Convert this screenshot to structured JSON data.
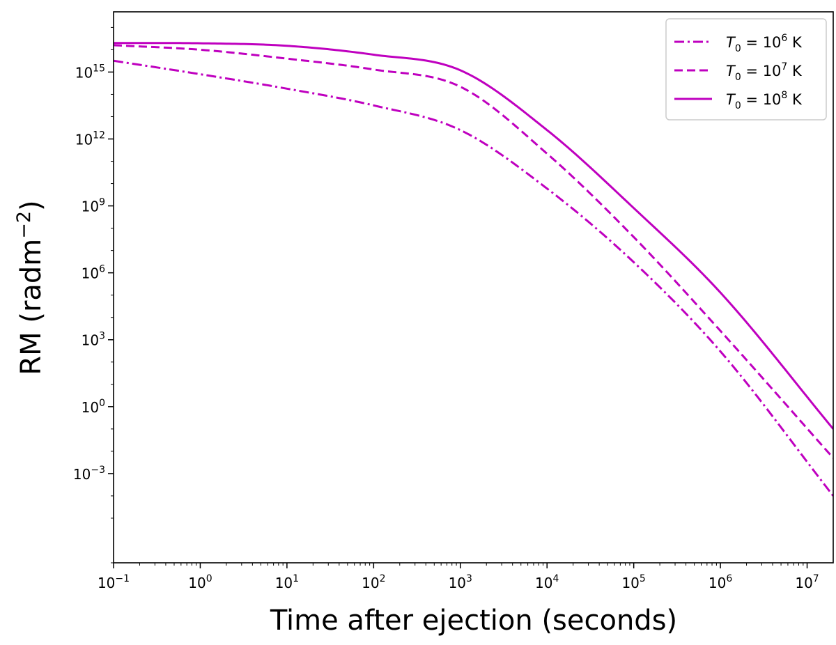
{
  "chart_data": {
    "type": "line",
    "title": "",
    "xlabel": "Time after ejection (seconds)",
    "ylabel": "RM (radm$^{-2}$)",
    "xscale": "log",
    "yscale": "log",
    "xlim": [
      0.1,
      20000000
    ],
    "ylim": [
      1e-07,
      5e+17
    ],
    "x_tick_labels": [
      "10^-1",
      "10^0",
      "10^1",
      "10^2",
      "10^3",
      "10^4",
      "10^5",
      "10^6",
      "10^7"
    ],
    "y_tick_labels": [
      "10^-3",
      "10^0",
      "10^3",
      "10^6",
      "10^9",
      "10^12",
      "10^15"
    ],
    "grid": false,
    "legend_position": "top-right",
    "color": "#bf00bf",
    "series": [
      {
        "name": "T0 = 10^6 K",
        "legend": {
          "var": "T",
          "sub": "0",
          "eq": " = 10",
          "exp": "6",
          "unit": " K"
        },
        "style": "dashdot",
        "points": [
          [
            0.1,
            3200000000000000.0
          ],
          [
            1,
            800000000000000.0
          ],
          [
            10,
            180000000000000.0
          ],
          [
            100,
            32000000000000.0
          ],
          [
            1000,
            2500000000000.0
          ],
          [
            10000,
            6000000000.0
          ],
          [
            100000,
            3000000.0
          ],
          [
            1000000,
            300.0
          ],
          [
            20000000,
            0.0001
          ]
        ]
      },
      {
        "name": "T0 = 10^7 K",
        "legend": {
          "var": "T",
          "sub": "0",
          "eq": " = 10",
          "exp": "7",
          "unit": " K"
        },
        "style": "dashed",
        "points": [
          [
            0.1,
            1.6e+16
          ],
          [
            1,
            1e+16
          ],
          [
            10,
            4000000000000000.0
          ],
          [
            100,
            1300000000000000.0
          ],
          [
            1000,
            220000000000000.0
          ],
          [
            10000,
            220000000000.0
          ],
          [
            100000,
            40000000.0
          ],
          [
            1000000,
            2500.0
          ],
          [
            20000000,
            0.005
          ]
        ]
      },
      {
        "name": "T0 = 10^8 K",
        "legend": {
          "var": "T",
          "sub": "0",
          "eq": " = 10",
          "exp": "8",
          "unit": " K"
        },
        "style": "solid",
        "points": [
          [
            0.1,
            2e+16
          ],
          [
            1,
            1.95e+16
          ],
          [
            10,
            1.5e+16
          ],
          [
            100,
            6000000000000000.0
          ],
          [
            1000,
            1200000000000000.0
          ],
          [
            10000,
            2500000000000.0
          ],
          [
            100000,
            800000000.0
          ],
          [
            1000000,
            130000.0
          ],
          [
            20000000,
            0.1
          ]
        ]
      }
    ]
  }
}
